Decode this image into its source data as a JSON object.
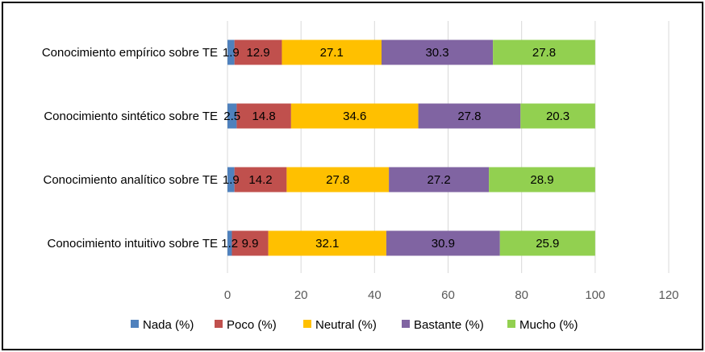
{
  "chart_data": {
    "type": "bar",
    "orientation": "horizontal",
    "stacked": true,
    "categories": [
      "Conocimiento empírico sobre TE",
      "Conocimiento sintético sobre TE",
      "Conocimiento analítico sobre TE",
      "Conocimiento intuitivo sobre TE"
    ],
    "series": [
      {
        "name": "Nada (%)",
        "color": "#4f81bd",
        "values": [
          1.9,
          2.5,
          1.9,
          1.2
        ]
      },
      {
        "name": "Poco (%)",
        "color": "#c0504d",
        "values": [
          12.9,
          14.8,
          14.2,
          9.9
        ]
      },
      {
        "name": "Neutral (%)",
        "color": "#ffc000",
        "values": [
          27.1,
          34.6,
          27.8,
          32.1
        ]
      },
      {
        "name": "Bastante (%)",
        "color": "#8064a2",
        "values": [
          30.3,
          27.8,
          27.2,
          30.9
        ]
      },
      {
        "name": "Mucho (%)",
        "color": "#92d050",
        "values": [
          27.8,
          20.3,
          28.9,
          25.9
        ]
      }
    ],
    "data_labels": [
      [
        "1.9",
        "2.5",
        "1.9",
        "1.2"
      ],
      [
        "12.9",
        "14.8",
        "14.2",
        "9.9"
      ],
      [
        "27.1",
        "34.6",
        "27.8",
        "32.1"
      ],
      [
        "30.3",
        "27.8",
        "27.2",
        "30.9"
      ],
      [
        "27.8",
        "20.3",
        "28.9",
        "25.9"
      ]
    ],
    "xlim": [
      0,
      120
    ],
    "x_ticks": [
      "0",
      "20",
      "40",
      "60",
      "80",
      "100",
      "120"
    ],
    "grid": true,
    "legend_position": "bottom"
  }
}
